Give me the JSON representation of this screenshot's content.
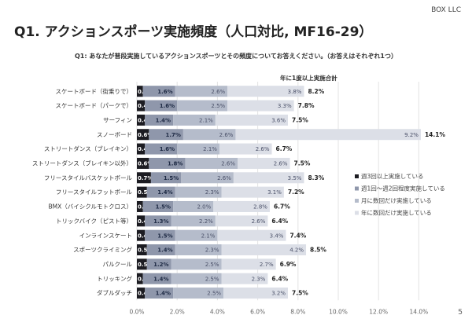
{
  "brand": "BOX LLC",
  "title": "Q1. アクションスポーツ実施頻度（人口対比, MF16-29）",
  "question": "Q1: あなたが普段実施しているアクションスポーツとその頻度についてお答えください。（お答えはそれぞれ1つ）",
  "page_number": "5",
  "chart_data": {
    "type": "bar",
    "orientation": "horizontal-stacked",
    "title": "Q1. アクションスポーツ実施頻度（人口対比, MF16-29）",
    "total_label": "年に1度以上実施合計",
    "categories": [
      "スケートボード（街乗りで）",
      "スケートボード（パークで）",
      "サーフィン",
      "スノーボード",
      "ストリートダンス（ブレイキン）",
      "ストリートダンス（ブレイキン以外）",
      "フリースタイルバスケットボール",
      "フリースタイルフットボール",
      "BMX（バイシクルモトクロス）",
      "トリックバイク（ピスト等）",
      "インラインスケート",
      "スポーツクライミング",
      "パルクール",
      "トリッキング",
      "ダブルダッチ"
    ],
    "series": [
      {
        "name": "週3回以上実施している",
        "color": "#1c1c22",
        "values": [
          0.3,
          0.4,
          0.4,
          0.6,
          0.4,
          0.6,
          0.7,
          0.5,
          0.3,
          0.4,
          0.4,
          0.5,
          0.5,
          0.3,
          0.4
        ]
      },
      {
        "name": "週1回〜週2回程度実施している",
        "color": "#8f97ab",
        "values": [
          1.6,
          1.6,
          1.4,
          1.7,
          1.6,
          1.8,
          1.5,
          1.4,
          1.5,
          1.3,
          1.5,
          1.4,
          1.2,
          1.4,
          1.4
        ]
      },
      {
        "name": "月に数回だけ実施している",
        "color": "#b5bccb",
        "values": [
          2.6,
          2.5,
          2.1,
          2.6,
          2.1,
          2.6,
          2.6,
          2.3,
          2.0,
          2.2,
          2.1,
          2.3,
          2.5,
          2.5,
          2.5
        ]
      },
      {
        "name": "年に数回だけ実施している",
        "color": "#dcdfe7",
        "values": [
          3.8,
          3.3,
          3.6,
          9.2,
          2.6,
          2.6,
          3.5,
          3.1,
          2.8,
          2.6,
          3.4,
          4.2,
          2.7,
          2.3,
          3.2
        ]
      }
    ],
    "totals": [
      8.2,
      7.8,
      7.5,
      14.1,
      6.7,
      7.5,
      8.3,
      7.2,
      6.7,
      6.4,
      7.4,
      8.5,
      6.9,
      6.4,
      7.5
    ],
    "xlim": [
      0,
      14
    ],
    "xticks": [
      "0.0%",
      "2.0%",
      "4.0%",
      "6.0%",
      "8.0%",
      "10.0%",
      "12.0%",
      "14.0%"
    ],
    "grid": true,
    "legend": "right"
  }
}
